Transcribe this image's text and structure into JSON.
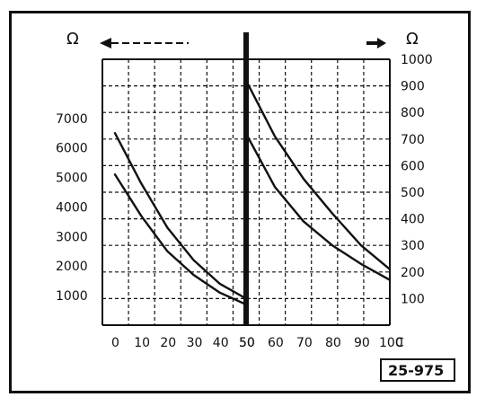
{
  "chart_data": {
    "type": "line",
    "left_panel": {
      "unit_symbol": "Ω",
      "x_ticks": [
        "0",
        "10",
        "20",
        "30",
        "40",
        "50"
      ],
      "y_ticks": [
        "1000",
        "2000",
        "3000",
        "4000",
        "5000",
        "6000",
        "7000"
      ],
      "x_range": [
        0,
        50
      ],
      "y_range": [
        0,
        9000
      ],
      "series": [
        {
          "values": [
            [
              0,
              6500
            ],
            [
              10,
              4800
            ],
            [
              20,
              3300
            ],
            [
              30,
              2200
            ],
            [
              40,
              1400
            ],
            [
              50,
              900
            ]
          ]
        },
        {
          "values": [
            [
              0,
              5100
            ],
            [
              10,
              3700
            ],
            [
              20,
              2500
            ],
            [
              30,
              1700
            ],
            [
              40,
              1100
            ],
            [
              50,
              700
            ]
          ]
        }
      ]
    },
    "right_panel": {
      "unit_symbol": "Ω",
      "x_ticks": [
        "50",
        "60",
        "70",
        "80",
        "90",
        "100"
      ],
      "x_unit": "C",
      "y_ticks": [
        "100",
        "200",
        "300",
        "400",
        "500",
        "600",
        "700",
        "800",
        "900",
        "1000"
      ],
      "x_range": [
        50,
        100
      ],
      "y_range": [
        0,
        1000
      ],
      "series": [
        {
          "values": [
            [
              50,
              920
            ],
            [
              60,
              710
            ],
            [
              70,
              550
            ],
            [
              80,
              420
            ],
            [
              90,
              300
            ],
            [
              100,
              210
            ]
          ]
        },
        {
          "values": [
            [
              50,
              720
            ],
            [
              60,
              520
            ],
            [
              70,
              390
            ],
            [
              80,
              300
            ],
            [
              90,
              230
            ],
            [
              100,
              170
            ]
          ]
        }
      ]
    },
    "grid": true,
    "code": "25-975"
  }
}
